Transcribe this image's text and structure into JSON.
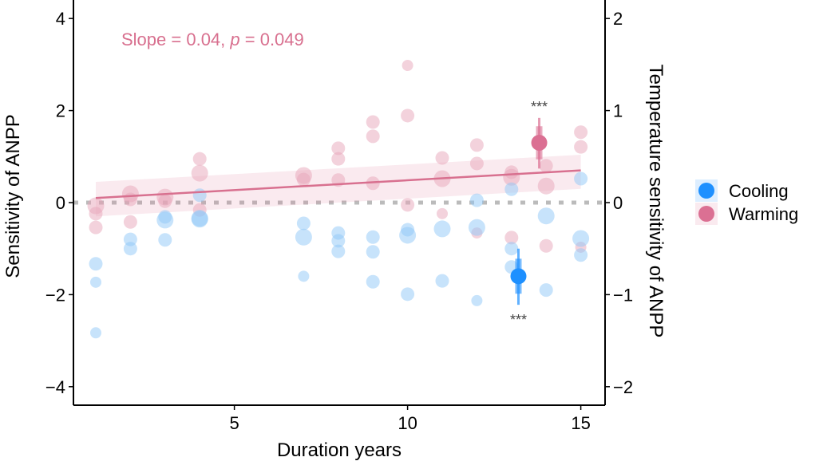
{
  "chart_data": {
    "type": "scatter",
    "xlabel": "Duration years",
    "ylabel": "Sensitivity of ANPP",
    "ylabel_right": "Temperature sensitivity of ANPP",
    "xlim": [
      0.1,
      15.7
    ],
    "ylim": [
      -4.4,
      4.4
    ],
    "ylim_right": [
      -2.2,
      2.2
    ],
    "x_ticks": [
      5,
      10,
      15
    ],
    "y_ticks": [
      -4,
      -2,
      0,
      2,
      4
    ],
    "y_ticks_right": [
      -2,
      -1,
      0,
      1,
      2
    ],
    "grid": false,
    "annotation": {
      "prefix": "Slope = 0.04, ",
      "p_label": "p",
      "suffix": " = 0.049"
    },
    "legend": {
      "placement": "right",
      "entries": [
        {
          "name": "Cooling",
          "color": "#1E90FF"
        },
        {
          "name": "Warming",
          "color": "#DB7093"
        }
      ]
    },
    "reference_line_y": 0,
    "regression": {
      "series": "Warming",
      "x": [
        1,
        15
      ],
      "y": [
        0.1,
        0.7
      ],
      "ci_low": [
        -0.3,
        0.3
      ],
      "ci_high": [
        0.45,
        1.04
      ]
    },
    "series": [
      {
        "name": "Warming",
        "color": "#E8A5BA",
        "points": [
          [
            1,
            -0.07,
            3
          ],
          [
            1,
            -0.24,
            2
          ],
          [
            1,
            -0.54,
            2
          ],
          [
            2,
            0.19,
            3
          ],
          [
            2,
            0.07,
            2
          ],
          [
            2,
            -0.42,
            2
          ],
          [
            3,
            0.12,
            3
          ],
          [
            3,
            0.03,
            2
          ],
          [
            4,
            0.95,
            2
          ],
          [
            4,
            0.64,
            3
          ],
          [
            4,
            -0.16,
            2
          ],
          [
            7,
            0.59,
            3
          ],
          [
            7,
            0.5,
            2
          ],
          [
            8,
            1.18,
            2
          ],
          [
            8,
            0.95,
            2
          ],
          [
            8,
            0.49,
            2
          ],
          [
            9,
            1.75,
            2
          ],
          [
            9,
            1.44,
            2
          ],
          [
            9,
            0.42,
            2
          ],
          [
            10,
            2.98,
            1
          ],
          [
            10,
            1.89,
            2
          ],
          [
            10,
            -0.05,
            2
          ],
          [
            11,
            0.97,
            2
          ],
          [
            11,
            0.52,
            3
          ],
          [
            11,
            -0.24,
            1
          ],
          [
            12,
            1.25,
            2
          ],
          [
            12,
            0.85,
            2
          ],
          [
            12,
            -0.66,
            1
          ],
          [
            13,
            0.66,
            2
          ],
          [
            13,
            0.55,
            3
          ],
          [
            13,
            -0.76,
            2
          ],
          [
            14,
            0.8,
            2
          ],
          [
            14,
            0.36,
            3
          ],
          [
            14,
            -0.94,
            2
          ],
          [
            15,
            1.53,
            2
          ],
          [
            15,
            1.21,
            2
          ],
          [
            15,
            -0.97,
            1
          ]
        ]
      },
      {
        "name": "Cooling",
        "color": "#90C8F8",
        "points": [
          [
            1,
            -1.33,
            2
          ],
          [
            1,
            -1.73,
            1
          ],
          [
            1,
            -2.83,
            1
          ],
          [
            2,
            -0.8,
            2
          ],
          [
            2,
            -1.0,
            2
          ],
          [
            3,
            -0.31,
            2
          ],
          [
            3,
            -0.38,
            3
          ],
          [
            3,
            -0.81,
            2
          ],
          [
            4,
            0.16,
            2
          ],
          [
            4,
            -0.36,
            3
          ],
          [
            4,
            -0.34,
            3
          ],
          [
            7,
            -0.45,
            2
          ],
          [
            7,
            -0.75,
            3
          ],
          [
            7,
            -1.6,
            1
          ],
          [
            8,
            -0.66,
            2
          ],
          [
            8,
            -0.83,
            2
          ],
          [
            8,
            -1.06,
            2
          ],
          [
            9,
            -0.75,
            2
          ],
          [
            9,
            -1.07,
            2
          ],
          [
            9,
            -1.72,
            2
          ],
          [
            10,
            -0.59,
            2
          ],
          [
            10,
            -0.71,
            3
          ],
          [
            10,
            -1.99,
            2
          ],
          [
            11,
            -0.57,
            3
          ],
          [
            11,
            -1.7,
            2
          ],
          [
            12,
            0.05,
            2
          ],
          [
            12,
            -0.54,
            3
          ],
          [
            12,
            -2.13,
            1
          ],
          [
            13,
            0.29,
            2
          ],
          [
            13,
            -1.0,
            2
          ],
          [
            13,
            -1.4,
            2
          ],
          [
            14,
            -0.29,
            3
          ],
          [
            14,
            -1.9,
            2
          ],
          [
            15,
            0.52,
            2
          ],
          [
            15,
            -0.78,
            3
          ],
          [
            15,
            -1.14,
            2
          ]
        ]
      }
    ],
    "summary_points": [
      {
        "series": "Warming",
        "x": 13.8,
        "y_right": 0.65,
        "ci95": [
          0.37,
          0.92
        ],
        "ci_inner": [
          0.47,
          0.83
        ],
        "label": "***",
        "color": "#DB7093"
      },
      {
        "series": "Cooling",
        "x": 13.2,
        "y_right": -0.8,
        "ci95": [
          -1.11,
          -0.5
        ],
        "ci_inner": [
          -0.99,
          -0.61
        ],
        "label": "***",
        "color": "#1E90FF"
      }
    ]
  }
}
